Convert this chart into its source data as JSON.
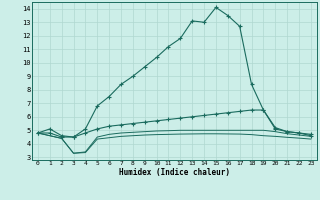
{
  "xlabel": "Humidex (Indice chaleur)",
  "bg_color": "#cceee8",
  "line_color": "#1a6b5e",
  "grid_color": "#b0d8d0",
  "xlim": [
    -0.5,
    23.5
  ],
  "ylim": [
    2.8,
    14.5
  ],
  "yticks": [
    3,
    4,
    5,
    6,
    7,
    8,
    9,
    10,
    11,
    12,
    13,
    14
  ],
  "xticks": [
    0,
    1,
    2,
    3,
    4,
    5,
    6,
    7,
    8,
    9,
    10,
    11,
    12,
    13,
    14,
    15,
    16,
    17,
    18,
    19,
    20,
    21,
    22,
    23
  ],
  "curve1_x": [
    0,
    1,
    2,
    3,
    4,
    5,
    6,
    7,
    8,
    9,
    10,
    11,
    12,
    13,
    14,
    15,
    16,
    17,
    18,
    19,
    20,
    21,
    22,
    23
  ],
  "curve1_y": [
    4.8,
    5.1,
    4.6,
    4.5,
    5.1,
    6.8,
    7.5,
    8.4,
    9.0,
    9.7,
    10.4,
    11.2,
    11.8,
    13.1,
    13.0,
    14.1,
    13.5,
    12.7,
    8.4,
    6.5,
    5.2,
    4.9,
    4.8,
    4.7
  ],
  "curve2_x": [
    0,
    1,
    2,
    3,
    4,
    5,
    6,
    7,
    8,
    9,
    10,
    11,
    12,
    13,
    14,
    15,
    16,
    17,
    18,
    19,
    20,
    21,
    22,
    23
  ],
  "curve2_y": [
    4.8,
    4.8,
    4.5,
    4.5,
    4.8,
    5.1,
    5.3,
    5.4,
    5.5,
    5.6,
    5.7,
    5.8,
    5.9,
    6.0,
    6.1,
    6.2,
    6.3,
    6.4,
    6.5,
    6.5,
    5.1,
    4.9,
    4.8,
    4.6
  ],
  "curve3_x": [
    0,
    1,
    2,
    3,
    4,
    5,
    6,
    7,
    8,
    9,
    10,
    11,
    12,
    13,
    14,
    15,
    16,
    17,
    18,
    19,
    20,
    21,
    22,
    23
  ],
  "curve3_y": [
    4.8,
    4.6,
    4.4,
    3.3,
    3.4,
    4.5,
    4.7,
    4.8,
    4.85,
    4.9,
    4.95,
    4.97,
    5.0,
    5.0,
    5.0,
    5.0,
    5.0,
    5.0,
    5.0,
    5.0,
    4.9,
    4.75,
    4.65,
    4.55
  ],
  "curve4_x": [
    0,
    1,
    2,
    3,
    4,
    5,
    6,
    7,
    8,
    9,
    10,
    11,
    12,
    13,
    14,
    15,
    16,
    17,
    18,
    19,
    20,
    21,
    22,
    23
  ],
  "curve4_y": [
    4.8,
    4.6,
    4.4,
    3.3,
    3.35,
    4.35,
    4.45,
    4.55,
    4.6,
    4.65,
    4.68,
    4.7,
    4.72,
    4.73,
    4.74,
    4.74,
    4.73,
    4.72,
    4.68,
    4.6,
    4.55,
    4.48,
    4.42,
    4.35
  ]
}
